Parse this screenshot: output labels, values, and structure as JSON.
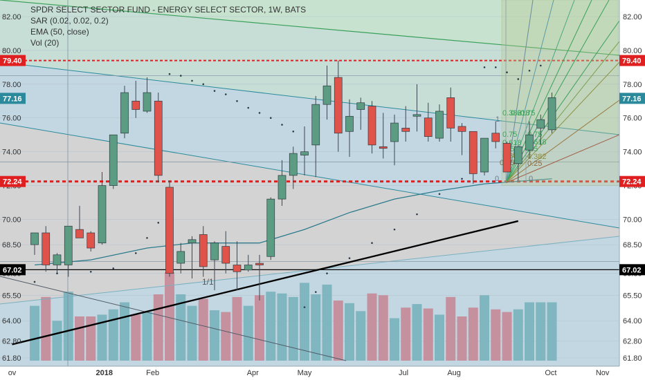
{
  "legend": {
    "title": "SPDR SELECT SECTOR FUND - ENERGY SELECT SECTOR, 1W, BATS",
    "sar": "SAR (0.02, 0.02, 0.2)",
    "ema": "EMA (50, close)",
    "vol": "Vol (20)"
  },
  "colors": {
    "up": "#5b9c83",
    "down": "#e0534a",
    "vol_up": "#78b3bd",
    "vol_down": "#c68a97",
    "fill_blue": "#c3d7e2",
    "fill_gray": "#d3d3d3",
    "fill_green": "#c8e3cc",
    "ema": "#2b7a8c",
    "trend": "#000000",
    "dash_red": "#e02020",
    "badge_red": "#e02020",
    "badge_teal": "#2a8a9c"
  },
  "chart_data": {
    "type": "candlestick",
    "title": "SPDR SELECT SECTOR FUND - ENERGY SELECT SECTOR, 1W, BATS",
    "ylim": [
      61.8,
      82.0
    ],
    "yticks": [
      61.8,
      62.8,
      64.0,
      65.5,
      66.8,
      68.5,
      70.0,
      72.0,
      74.0,
      76.0,
      78.0,
      80.0,
      82.0
    ],
    "xticks": [
      {
        "label": "ov",
        "i": -2
      },
      {
        "label": "2018",
        "i": 6.2
      },
      {
        "label": "Feb",
        "i": 10.5
      },
      {
        "label": "Apr",
        "i": 19.4
      },
      {
        "label": "May",
        "i": 24.0
      },
      {
        "label": "Jul",
        "i": 32.8
      },
      {
        "label": "Aug",
        "i": 37.3
      },
      {
        "label": "Oct",
        "i": 45.9
      },
      {
        "label": "Nov",
        "i": 50.5
      }
    ],
    "candles": [
      {
        "o": 68.5,
        "h": 69.2,
        "l": 67.9,
        "c": 69.2
      },
      {
        "o": 69.2,
        "h": 69.6,
        "l": 66.9,
        "c": 67.3
      },
      {
        "o": 67.3,
        "h": 68.0,
        "l": 66.8,
        "c": 67.9
      },
      {
        "o": 67.3,
        "h": 69.5,
        "l": 66.6,
        "c": 69.6
      },
      {
        "o": 69.4,
        "h": 70.8,
        "l": 69.0,
        "c": 68.9
      },
      {
        "o": 69.2,
        "h": 69.3,
        "l": 68.1,
        "c": 68.3
      },
      {
        "o": 68.6,
        "h": 72.8,
        "l": 68.5,
        "c": 72.0
      },
      {
        "o": 72.0,
        "h": 75.0,
        "l": 71.8,
        "c": 75.0
      },
      {
        "o": 75.1,
        "h": 77.9,
        "l": 74.8,
        "c": 77.5
      },
      {
        "o": 77.0,
        "h": 78.2,
        "l": 76.0,
        "c": 76.5
      },
      {
        "o": 76.4,
        "h": 78.4,
        "l": 76.3,
        "c": 77.5
      },
      {
        "o": 77.0,
        "h": 77.5,
        "l": 72.2,
        "c": 72.6
      },
      {
        "o": 71.9,
        "h": 72.3,
        "l": 66.6,
        "c": 66.8
      },
      {
        "o": 67.4,
        "h": 68.6,
        "l": 66.8,
        "c": 68.1
      },
      {
        "o": 68.6,
        "h": 69.0,
        "l": 66.5,
        "c": 68.8
      },
      {
        "o": 69.1,
        "h": 69.6,
        "l": 66.6,
        "c": 67.2
      },
      {
        "o": 67.6,
        "h": 68.7,
        "l": 65.8,
        "c": 68.6
      },
      {
        "o": 68.4,
        "h": 69.3,
        "l": 66.8,
        "c": 67.4
      },
      {
        "o": 67.3,
        "h": 68.7,
        "l": 65.8,
        "c": 66.9
      },
      {
        "o": 67.0,
        "h": 67.9,
        "l": 66.9,
        "c": 67.3
      },
      {
        "o": 67.4,
        "h": 67.9,
        "l": 65.2,
        "c": 67.3
      },
      {
        "o": 67.8,
        "h": 71.3,
        "l": 67.6,
        "c": 71.2
      },
      {
        "o": 71.2,
        "h": 73.5,
        "l": 70.8,
        "c": 72.6
      },
      {
        "o": 72.6,
        "h": 74.3,
        "l": 71.8,
        "c": 73.9
      },
      {
        "o": 73.8,
        "h": 75.5,
        "l": 72.6,
        "c": 74.0
      },
      {
        "o": 74.4,
        "h": 77.3,
        "l": 72.5,
        "c": 76.8
      },
      {
        "o": 76.8,
        "h": 79.1,
        "l": 75.9,
        "c": 77.9
      },
      {
        "o": 78.4,
        "h": 79.4,
        "l": 74.0,
        "c": 75.1
      },
      {
        "o": 75.2,
        "h": 77.1,
        "l": 73.7,
        "c": 76.1
      },
      {
        "o": 76.5,
        "h": 77.2,
        "l": 75.3,
        "c": 76.9
      },
      {
        "o": 76.7,
        "h": 77.0,
        "l": 73.9,
        "c": 74.4
      },
      {
        "o": 74.3,
        "h": 76.3,
        "l": 73.6,
        "c": 74.2
      },
      {
        "o": 74.6,
        "h": 76.2,
        "l": 73.2,
        "c": 75.7
      },
      {
        "o": 75.4,
        "h": 76.7,
        "l": 74.6,
        "c": 75.2
      },
      {
        "o": 76.1,
        "h": 78.0,
        "l": 75.2,
        "c": 76.2
      },
      {
        "o": 76.0,
        "h": 76.9,
        "l": 74.6,
        "c": 74.9
      },
      {
        "o": 74.8,
        "h": 76.8,
        "l": 74.6,
        "c": 76.4
      },
      {
        "o": 77.2,
        "h": 77.8,
        "l": 74.6,
        "c": 75.4
      },
      {
        "o": 75.5,
        "h": 75.7,
        "l": 73.8,
        "c": 75.2
      },
      {
        "o": 75.2,
        "h": 75.2,
        "l": 72.1,
        "c": 72.7
      },
      {
        "o": 72.8,
        "h": 74.6,
        "l": 72.6,
        "c": 74.8
      },
      {
        "o": 75.1,
        "h": 75.8,
        "l": 74.2,
        "c": 74.6
      },
      {
        "o": 74.5,
        "h": 74.6,
        "l": 72.9,
        "c": 72.8
      },
      {
        "o": 73.3,
        "h": 74.4,
        "l": 72.3,
        "c": 74.3
      },
      {
        "o": 74.1,
        "h": 75.8,
        "l": 73.6,
        "c": 75.0
      },
      {
        "o": 75.4,
        "h": 76.2,
        "l": 74.4,
        "c": 75.9
      },
      {
        "o": 75.3,
        "h": 77.5,
        "l": 75.1,
        "c": 77.2
      }
    ],
    "volume_ratio": [
      0.62,
      0.72,
      0.45,
      0.78,
      0.5,
      0.5,
      0.52,
      0.58,
      0.66,
      0.52,
      0.55,
      0.75,
      1.0,
      0.75,
      0.62,
      0.7,
      0.57,
      0.55,
      0.72,
      0.62,
      0.74,
      0.78,
      0.76,
      0.72,
      0.88,
      0.75,
      0.86,
      0.68,
      0.65,
      0.56,
      0.76,
      0.74,
      0.48,
      0.6,
      0.64,
      0.59,
      0.52,
      0.72,
      0.5,
      0.6,
      0.74,
      0.58,
      0.55,
      0.58,
      0.66,
      0.66,
      0.66
    ],
    "ema_50": [
      [
        0,
        67.3
      ],
      [
        5,
        67.6
      ],
      [
        10,
        68.3
      ],
      [
        14,
        68.6
      ],
      [
        20,
        68.6
      ],
      [
        24,
        69.4
      ],
      [
        28,
        70.4
      ],
      [
        32,
        71.2
      ],
      [
        36,
        71.7
      ],
      [
        40,
        72.1
      ],
      [
        46,
        72.4
      ]
    ],
    "sar": [
      [
        0,
        66.3
      ],
      [
        2,
        66.8
      ],
      [
        5,
        66.9
      ],
      [
        7,
        67.1
      ],
      [
        9,
        68.0
      ],
      [
        10,
        68.9
      ],
      [
        11,
        69.8
      ],
      [
        12,
        78.6
      ],
      [
        13,
        78.5
      ],
      [
        14,
        78.2
      ],
      [
        15,
        78.0
      ],
      [
        16,
        77.6
      ],
      [
        17,
        77.4
      ],
      [
        18,
        77.0
      ],
      [
        19,
        76.6
      ],
      [
        20,
        76.3
      ],
      [
        21,
        76.0
      ],
      [
        22,
        75.6
      ],
      [
        23,
        75.2
      ],
      [
        24,
        64.8
      ],
      [
        25,
        65.7
      ],
      [
        26,
        66.8
      ],
      [
        28,
        67.7
      ],
      [
        30,
        68.6
      ],
      [
        32,
        69.4
      ],
      [
        34,
        70.3
      ],
      [
        36,
        71.5
      ],
      [
        38,
        72.4
      ],
      [
        40,
        79.0
      ],
      [
        41,
        79.0
      ],
      [
        42,
        78.7
      ],
      [
        43,
        78.3
      ],
      [
        44,
        78.8
      ],
      [
        45,
        79.1
      ]
    ],
    "horizontal_levels": [
      {
        "price": 79.4,
        "label": "79.40",
        "style": "dashed",
        "badge": "red"
      },
      {
        "price": 78.5,
        "style": "solid-thin"
      },
      {
        "price": 77.16,
        "label": "77.16",
        "style": "none",
        "badge": "teal"
      },
      {
        "price": 73.4,
        "style": "solid-thin"
      },
      {
        "price": 72.24,
        "label": "72.24",
        "style": "dashed-bold",
        "badge": "red"
      },
      {
        "price": 67.5,
        "style": "solid-thin"
      },
      {
        "price": 67.02,
        "label": "67.02",
        "style": "solid",
        "badge": "black"
      }
    ],
    "trendline": [
      [
        -2,
        62.6
      ],
      [
        43,
        69.9
      ]
    ],
    "fib_annotation": "1/1",
    "fib_labels": [
      "1",
      "0.75",
      "0.618",
      "0.5",
      "0.382",
      "0.25",
      "0",
      "0.75",
      "0.618",
      "0.5",
      "0.382",
      "0.25",
      "0",
      "0.382",
      "0.618",
      "0.75"
    ]
  }
}
